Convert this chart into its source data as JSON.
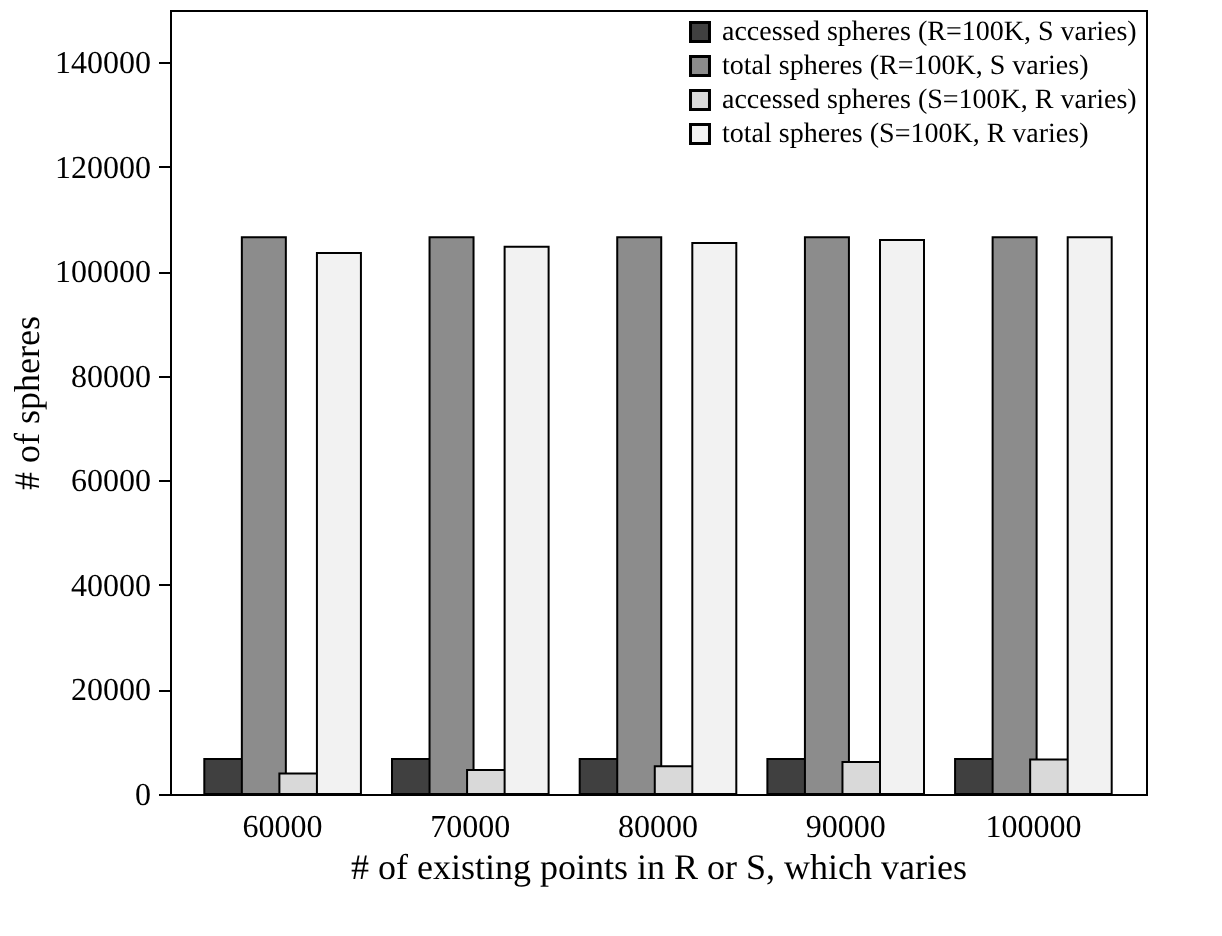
{
  "chart_data": {
    "type": "bar",
    "xlabel": "# of existing points in R or S, which varies",
    "ylabel": "# of spheres",
    "categories": [
      "60000",
      "70000",
      "80000",
      "90000",
      "100000"
    ],
    "series": [
      {
        "name": "accessed spheres (R=100K, S varies)",
        "color": "#404040",
        "values": [
          6700,
          6700,
          6700,
          6700,
          6700
        ]
      },
      {
        "name": "total spheres (R=100K, S varies)",
        "color": "#8c8c8c",
        "values": [
          106500,
          106500,
          106500,
          106500,
          106500
        ]
      },
      {
        "name": "accessed spheres (S=100K, R varies)",
        "color": "#d9d9d9",
        "values": [
          3900,
          4600,
          5300,
          6100,
          6600
        ]
      },
      {
        "name": "total spheres (S=100K, R varies)",
        "color": "#f2f2f2",
        "values": [
          103500,
          104700,
          105400,
          106000,
          106500
        ]
      }
    ],
    "ylim": [
      0,
      150000
    ],
    "yticks": [
      0,
      20000,
      40000,
      60000,
      80000,
      100000,
      120000,
      140000
    ],
    "grid": false,
    "legend": "top right"
  }
}
